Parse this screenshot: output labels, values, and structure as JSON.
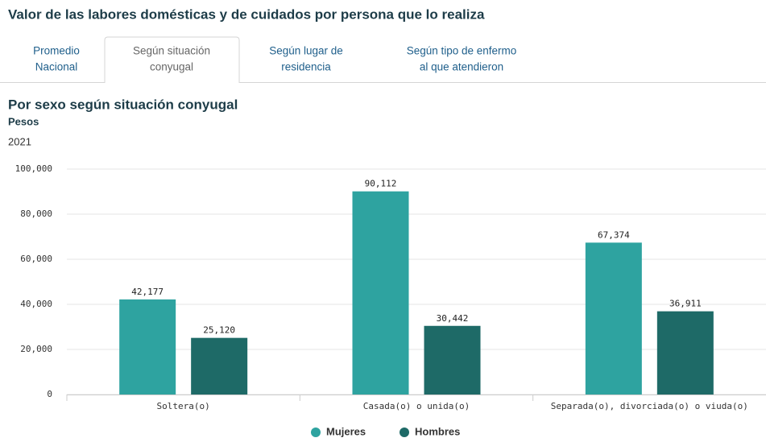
{
  "header": {
    "title": "Valor de las labores domésticas y de cuidados por persona que lo realiza"
  },
  "tabs": [
    {
      "lines": [
        "Promedio",
        "Nacional"
      ]
    },
    {
      "lines": [
        "Según situación",
        "conyugal"
      ],
      "active": true
    },
    {
      "lines": [
        "Según lugar de",
        "residencia"
      ]
    },
    {
      "lines": [
        "Según tipo de enfermo",
        "al que atendieron"
      ]
    }
  ],
  "chart_data": {
    "type": "bar",
    "title": "Por sexo según situación conyugal",
    "subtitle": "Pesos",
    "period": "2021",
    "categories": [
      "Soltera(o)",
      "Casada(o) o unida(o)",
      "Separada(o), divorciada(o) o viuda(o)"
    ],
    "series": [
      {
        "name": "Mujeres",
        "color": "#2ea3a0",
        "values": [
          42177,
          90112,
          67374
        ],
        "value_labels": [
          "42,177",
          "90,112",
          "67,374"
        ]
      },
      {
        "name": "Hombres",
        "color": "#1e6a67",
        "values": [
          25120,
          30442,
          36911
        ],
        "value_labels": [
          "25,120",
          "30,442",
          "36,911"
        ]
      }
    ],
    "ylim": [
      0,
      100000
    ],
    "yticks": [
      0,
      {
        "value": 20000,
        "label": "20,000"
      },
      {
        "value": 40000,
        "label": "40,000"
      },
      {
        "value": 60000,
        "label": "60,000"
      },
      {
        "value": 80000,
        "label": "80,000"
      },
      {
        "value": 100000,
        "label": "100,000"
      }
    ],
    "grid": true,
    "legend": "bottom"
  }
}
